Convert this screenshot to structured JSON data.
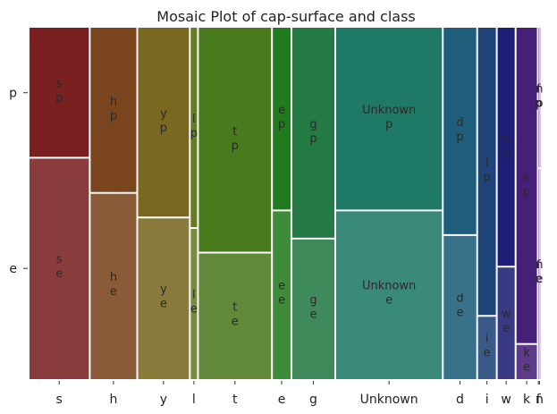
{
  "chart_data": {
    "type": "mosaic",
    "title": "Mosaic Plot of cap-surface and class",
    "x_variable": "cap-surface",
    "y_variable": "class",
    "y_categories": [
      "e",
      "p"
    ],
    "categories": [
      {
        "key": "s",
        "color": "#7a2020",
        "width": 0.1655,
        "share_p": 0.37
      },
      {
        "key": "h",
        "color": "#7a441e",
        "width": 0.1285,
        "share_p": 0.47
      },
      {
        "key": "y",
        "color": "#7a6820",
        "width": 0.1423,
        "share_p": 0.54
      },
      {
        "key": "l",
        "color": "#6a7a22",
        "width": 0.022,
        "share_p": 0.57
      },
      {
        "key": "t",
        "color": "#4a7a1e",
        "width": 0.2003,
        "share_p": 0.64
      },
      {
        "key": "e",
        "color": "#227a1e",
        "width": 0.0526,
        "share_p": 0.52
      },
      {
        "key": "g",
        "color": "#247a44",
        "width": 0.1187,
        "share_p": 0.6
      },
      {
        "key": "Unknown",
        "color": "#1e7a66",
        "width": 0.291,
        "share_p": 0.52
      },
      {
        "key": "d",
        "color": "#1e5e7a",
        "width": 0.093,
        "share_p": 0.59
      },
      {
        "key": "i",
        "color": "#1e4478",
        "width": 0.053,
        "share_p": 0.82
      },
      {
        "key": "w",
        "color": "#1e1e76",
        "width": 0.051,
        "share_p": 0.68
      },
      {
        "key": "k",
        "color": "#462078",
        "width": 0.0601,
        "share_p": 0.9
      },
      {
        "key": "f",
        "color": "#5a2078",
        "width": 0.003,
        "share_p": 0.4
      },
      {
        "key": "n",
        "color": "#6a2078",
        "width": 0.003,
        "share_p": 0.4
      }
    ]
  }
}
